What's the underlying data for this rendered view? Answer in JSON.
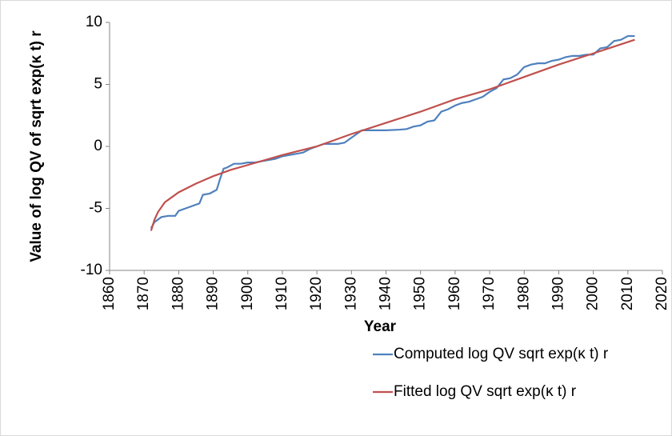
{
  "chart_data": {
    "type": "line",
    "xlabel": "Year",
    "ylabel": "Value of log QV of sqrt exp(κ t) r",
    "xlim": [
      1860,
      2020
    ],
    "xticks": [
      1860,
      1870,
      1880,
      1890,
      1900,
      1910,
      1920,
      1930,
      1940,
      1950,
      1960,
      1970,
      1980,
      1990,
      2000,
      2010,
      2020
    ],
    "ylim": [
      -10,
      10
    ],
    "yticks": [
      -10,
      -5,
      0,
      5,
      10
    ],
    "legend": "bottom",
    "series": [
      {
        "name": "Computed log QV sqrt exp(κ t) r",
        "color": "#4f81bd",
        "x": [
          1872,
          1873,
          1875,
          1877,
          1879,
          1880,
          1882,
          1884,
          1886,
          1887,
          1889,
          1891,
          1892,
          1893,
          1894,
          1896,
          1898,
          1900,
          1902,
          1904,
          1906,
          1908,
          1910,
          1912,
          1914,
          1916,
          1918,
          1920,
          1922,
          1924,
          1926,
          1928,
          1930,
          1932,
          1933,
          1936,
          1940,
          1944,
          1946,
          1948,
          1950,
          1952,
          1954,
          1956,
          1958,
          1960,
          1962,
          1964,
          1966,
          1968,
          1970,
          1972,
          1974,
          1976,
          1978,
          1980,
          1982,
          1984,
          1986,
          1988,
          1990,
          1992,
          1994,
          1996,
          1998,
          2000,
          2002,
          2004,
          2006,
          2008,
          2010,
          2012
        ],
        "values": [
          -6.6,
          -6.1,
          -5.7,
          -5.6,
          -5.6,
          -5.2,
          -5.0,
          -4.8,
          -4.6,
          -3.9,
          -3.8,
          -3.5,
          -2.6,
          -1.8,
          -1.7,
          -1.4,
          -1.4,
          -1.3,
          -1.3,
          -1.2,
          -1.1,
          -1.0,
          -0.8,
          -0.7,
          -0.6,
          -0.5,
          -0.2,
          0.0,
          0.2,
          0.2,
          0.2,
          0.3,
          0.7,
          1.1,
          1.3,
          1.3,
          1.3,
          1.35,
          1.4,
          1.6,
          1.7,
          2.0,
          2.1,
          2.8,
          3.0,
          3.3,
          3.5,
          3.6,
          3.8,
          4.0,
          4.4,
          4.7,
          5.4,
          5.5,
          5.8,
          6.4,
          6.6,
          6.7,
          6.7,
          6.9,
          7.0,
          7.2,
          7.3,
          7.3,
          7.4,
          7.4,
          7.9,
          8.0,
          8.5,
          8.6,
          8.9,
          8.9
        ]
      },
      {
        "name": "Fitted log QV sqrt exp(κ t) r",
        "color": "#c0504d",
        "x": [
          1872,
          1873,
          1874,
          1876,
          1878,
          1880,
          1885,
          1890,
          1895,
          1900,
          1910,
          1920,
          1930,
          1940,
          1950,
          1960,
          1970,
          1980,
          1990,
          2000,
          2012
        ],
        "values": [
          -6.8,
          -5.9,
          -5.3,
          -4.5,
          -4.1,
          -3.7,
          -3.0,
          -2.4,
          -1.9,
          -1.5,
          -0.7,
          0.0,
          1.0,
          1.9,
          2.8,
          3.8,
          4.6,
          5.6,
          6.6,
          7.5,
          8.6
        ]
      }
    ]
  }
}
